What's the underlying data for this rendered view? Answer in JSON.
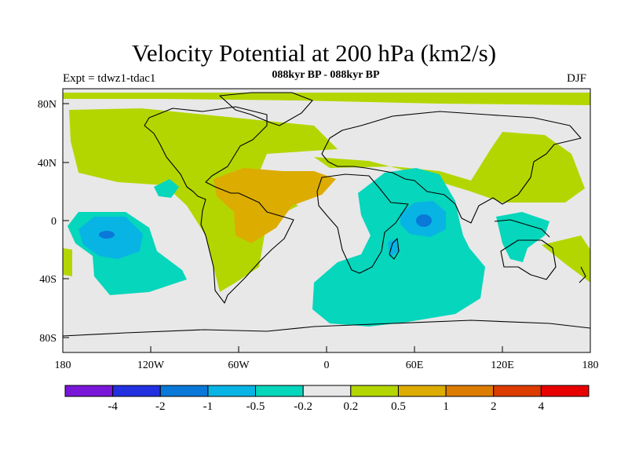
{
  "title": "Velocity Potential at 200 hPa (km2/s)",
  "experiment": "Expt = tdwz1-tdac1",
  "subtitle": "088kyr BP - 088kyr BP",
  "season": "DJF",
  "lat_ticks": [
    "80N",
    "40N",
    "0",
    "40S",
    "80S"
  ],
  "lon_ticks": [
    "180",
    "120W",
    "60W",
    "0",
    "60E",
    "120E",
    "180"
  ],
  "colorbar": {
    "colors": [
      "#7a16d8",
      "#2230e0",
      "#0a78d8",
      "#08b4e4",
      "#06d6bc",
      "#e8e8e8",
      "#b4d600",
      "#dcac00",
      "#dc7c00",
      "#dc3c00",
      "#e80000"
    ],
    "labels": [
      "-4",
      "-2",
      "-1",
      "-0.5",
      "-0.2",
      "0.2",
      "0.5",
      "1",
      "2",
      "4"
    ]
  },
  "colors": {
    "background_field": "#e8e8e8",
    "coastline": "#000000"
  }
}
